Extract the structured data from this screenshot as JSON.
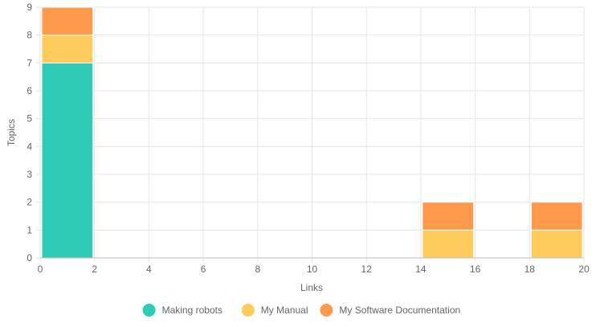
{
  "chart_data": {
    "type": "bar",
    "stacked": true,
    "xlabel": "Links",
    "ylabel": "Topics",
    "xlim": [
      0,
      20
    ],
    "ylim": [
      0,
      9
    ],
    "x_ticks": [
      "0",
      "2",
      "4",
      "6",
      "8",
      "10",
      "12",
      "14",
      "16",
      "18",
      "20"
    ],
    "y_ticks": [
      "0",
      "1",
      "2",
      "3",
      "4",
      "5",
      "6",
      "7",
      "8",
      "9"
    ],
    "grid": true,
    "legend_position": "bottom",
    "bins": [
      {
        "x_start": 0,
        "x_end": 2
      },
      {
        "x_start": 14,
        "x_end": 16
      },
      {
        "x_start": 18,
        "x_end": 20
      }
    ],
    "series": [
      {
        "name": "Making robots",
        "color": "#2ecbb6",
        "values": [
          7,
          0,
          0
        ]
      },
      {
        "name": "My Manual",
        "color": "#ffcc5c",
        "values": [
          1,
          1,
          1
        ]
      },
      {
        "name": "My Software Documentation",
        "color": "#ff9a4d",
        "values": [
          1,
          1,
          1
        ]
      }
    ]
  }
}
